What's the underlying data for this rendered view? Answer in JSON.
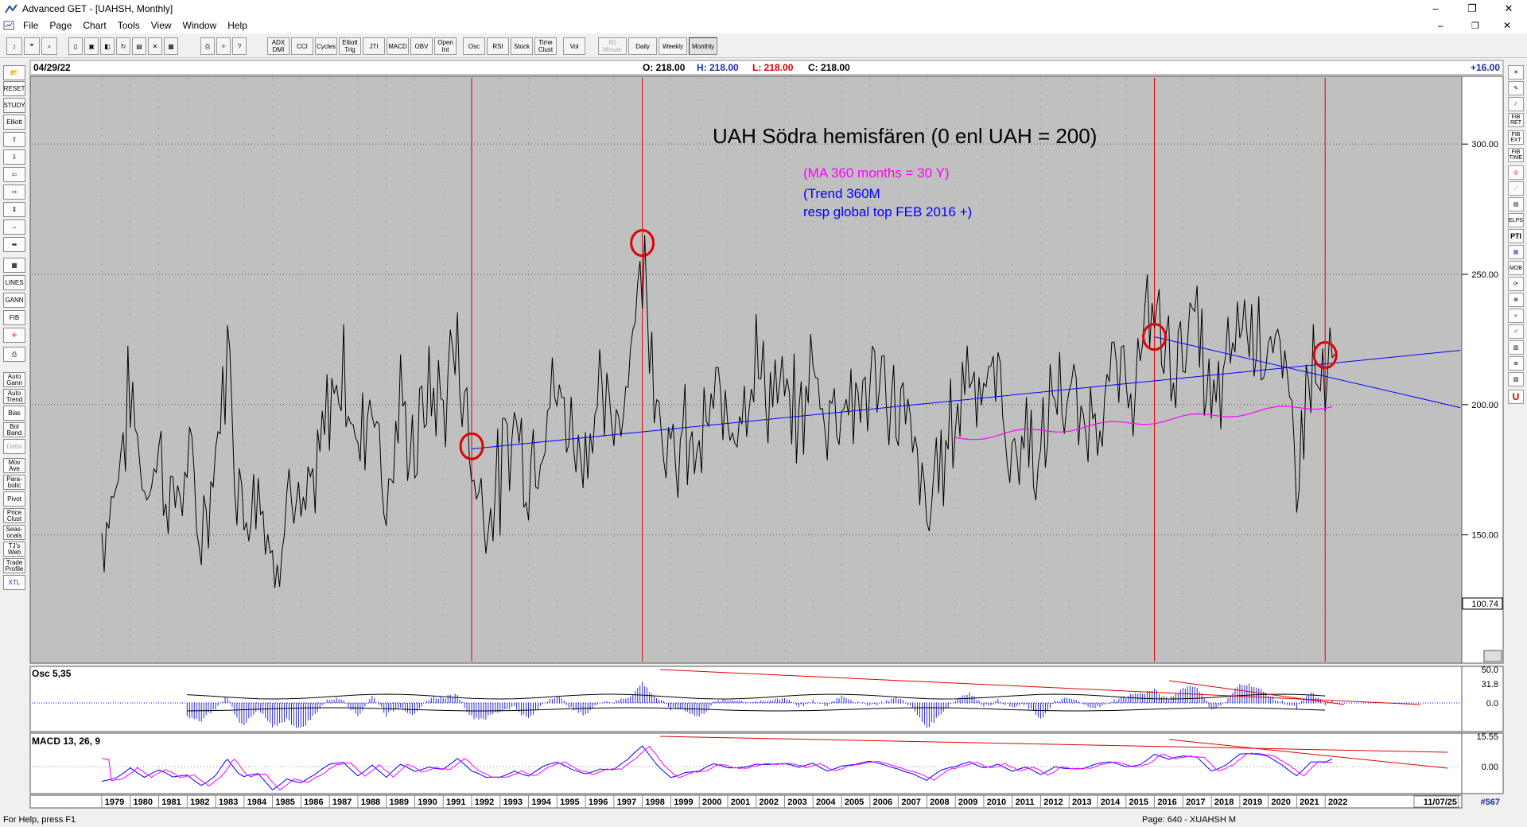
{
  "window": {
    "title": "Advanced GET - [UAHSH, Monthly]",
    "minimize": "–",
    "restore": "❐",
    "close": "✕",
    "inner_minimize": "–",
    "inner_restore": "❐",
    "inner_close": "✕"
  },
  "menu": [
    "File",
    "Page",
    "Chart",
    "Tools",
    "View",
    "Window",
    "Help"
  ],
  "toolbar": {
    "indicator_buttons": [
      "ADX DMI",
      "CCI",
      "Cycles",
      "Elliott Trig",
      "JTI",
      "MACD",
      "OBV",
      "Open Int",
      "Osc",
      "RSI",
      "Stock",
      "Time Clust",
      "Vol"
    ],
    "period_buttons": [
      "60 Minute",
      "Daily",
      "Weekly",
      "Monthly"
    ],
    "active_period": "Monthly"
  },
  "left_tools": [
    "RESET",
    "STUDY",
    "Elliott",
    "LINES",
    "GANN",
    "FIB",
    "Auto Gann",
    "Auto Trend",
    "Bias",
    "Bol Band",
    "Delta",
    "Mov Ave",
    "Para-bolic",
    "Pivot",
    "Price Clust",
    "Seas-onals",
    "TJ's Web",
    "Trade Profile",
    "XTL"
  ],
  "right_tools": [
    "FIB RET",
    "FIB EXT",
    "FIB TIME",
    "ELPS",
    "PTI",
    "MOB"
  ],
  "header": {
    "date": "04/29/22",
    "open": "O: 218.00",
    "high": "H: 218.00",
    "low": "L: 218.00",
    "close": "C: 218.00",
    "change": "+16.00"
  },
  "colors": {
    "chart_bg": "#c0c0c0",
    "price_line": "#000000",
    "trend": "#0000ff",
    "ma": "#ff00ff",
    "marker": "#ff0000"
  },
  "annotations": {
    "title": "UAH Södra hemisfären (0 enl UAH = 200)",
    "ma_note": "(MA 360 months = 30 Y)",
    "trend_note": "(Trend 360M",
    "trend_note2": "resp global top FEB 2016 +)"
  },
  "price_axis": {
    "ticks": [
      "300.00",
      "250.00",
      "200.00",
      "150.00"
    ],
    "low_box": "100.74"
  },
  "osc_panel": {
    "label": "Osc 5,35",
    "ticks": [
      "50.0",
      "31.8",
      "0.0"
    ]
  },
  "macd_panel": {
    "label": "MACD 13, 26, 9",
    "ticks": [
      "15.55",
      "0.00"
    ]
  },
  "x_axis": {
    "years": [
      "1979",
      "1980",
      "1981",
      "1982",
      "1983",
      "1984",
      "1985",
      "1986",
      "1987",
      "1988",
      "1989",
      "1990",
      "1991",
      "1992",
      "1993",
      "1994",
      "1995",
      "1996",
      "1997",
      "1998",
      "1999",
      "2000",
      "2001",
      "2002",
      "2003",
      "2004",
      "2005",
      "2006",
      "2007",
      "2008",
      "2009",
      "2010",
      "2011",
      "2012",
      "2013",
      "2014",
      "2015",
      "2016",
      "2017",
      "2018",
      "2019",
      "2020",
      "2021",
      "2022"
    ],
    "right_date": "11/07/25",
    "bar_count": "#567"
  },
  "status": {
    "help": "For Help, press F1",
    "page": "Page: 640 - XUAHSH M"
  },
  "chart_data": {
    "type": "line",
    "series": [],
    "x_range": [
      1979,
      2022.33
    ],
    "ylim": [
      100.74,
      326
    ],
    "grid": true,
    "trend_line_from": [
      1992.0,
      183
    ],
    "trend_line_to": [
      2022.33,
      216
    ],
    "trend_line2_from": [
      2016.0,
      226
    ],
    "trend_line2_to": [
      2022.33,
      210
    ],
    "ma_start": [
      2009.0,
      187
    ],
    "ma_end": [
      2022.33,
      200
    ],
    "circled_points": [
      [
        1992.0,
        184
      ],
      [
        1998.0,
        262
      ],
      [
        2016.0,
        226
      ],
      [
        2022.0,
        219
      ]
    ],
    "vertical_markers": [
      1992.0,
      1998.0,
      2016.0,
      2022.0
    ],
    "anchor_points": [
      [
        1979.0,
        150
      ],
      [
        1979.5,
        170
      ],
      [
        1980.0,
        205
      ],
      [
        1980.5,
        168
      ],
      [
        1981.0,
        182
      ],
      [
        1981.5,
        160
      ],
      [
        1982.0,
        175
      ],
      [
        1982.5,
        150
      ],
      [
        1983.0,
        178
      ],
      [
        1983.4,
        222
      ],
      [
        1983.8,
        170
      ],
      [
        1984.0,
        160
      ],
      [
        1984.5,
        175
      ],
      [
        1985.0,
        134
      ],
      [
        1985.5,
        170
      ],
      [
        1986.0,
        150
      ],
      [
        1986.5,
        168
      ],
      [
        1987.0,
        200
      ],
      [
        1987.5,
        215
      ],
      [
        1988.0,
        180
      ],
      [
        1988.5,
        210
      ],
      [
        1989.0,
        162
      ],
      [
        1989.5,
        198
      ],
      [
        1990.0,
        182
      ],
      [
        1990.5,
        205
      ],
      [
        1991.0,
        200
      ],
      [
        1991.5,
        225
      ],
      [
        1992.0,
        178
      ],
      [
        1992.5,
        160
      ],
      [
        1993.0,
        170
      ],
      [
        1993.5,
        195
      ],
      [
        1994.0,
        175
      ],
      [
        1994.5,
        195
      ],
      [
        1995.0,
        205
      ],
      [
        1995.5,
        190
      ],
      [
        1996.0,
        185
      ],
      [
        1996.5,
        200
      ],
      [
        1997.0,
        190
      ],
      [
        1997.5,
        215
      ],
      [
        1998.0,
        258
      ],
      [
        1998.5,
        210
      ],
      [
        1999.0,
        175
      ],
      [
        1999.5,
        185
      ],
      [
        2000.0,
        180
      ],
      [
        2000.5,
        200
      ],
      [
        2001.0,
        195
      ],
      [
        2001.5,
        205
      ],
      [
        2002.0,
        215
      ],
      [
        2002.5,
        205
      ],
      [
        2003.0,
        200
      ],
      [
        2003.5,
        192
      ],
      [
        2004.0,
        215
      ],
      [
        2004.5,
        195
      ],
      [
        2005.0,
        205
      ],
      [
        2005.5,
        200
      ],
      [
        2006.0,
        208
      ],
      [
        2006.5,
        205
      ],
      [
        2007.0,
        200
      ],
      [
        2007.5,
        185
      ],
      [
        2008.0,
        155
      ],
      [
        2008.5,
        180
      ],
      [
        2009.0,
        195
      ],
      [
        2009.5,
        220
      ],
      [
        2010.0,
        205
      ],
      [
        2010.5,
        210
      ],
      [
        2011.0,
        178
      ],
      [
        2011.5,
        190
      ],
      [
        2012.0,
        175
      ],
      [
        2012.5,
        208
      ],
      [
        2013.0,
        200
      ],
      [
        2013.5,
        190
      ],
      [
        2014.0,
        200
      ],
      [
        2014.5,
        210
      ],
      [
        2015.0,
        205
      ],
      [
        2015.5,
        215
      ],
      [
        2016.0,
        240
      ],
      [
        2016.5,
        215
      ],
      [
        2017.0,
        225
      ],
      [
        2017.5,
        230
      ],
      [
        2018.0,
        195
      ],
      [
        2018.5,
        210
      ],
      [
        2019.0,
        235
      ],
      [
        2019.5,
        230
      ],
      [
        2020.0,
        228
      ],
      [
        2020.5,
        210
      ],
      [
        2021.0,
        180
      ],
      [
        2021.5,
        215
      ],
      [
        2022.0,
        205
      ],
      [
        2022.33,
        218
      ]
    ]
  }
}
